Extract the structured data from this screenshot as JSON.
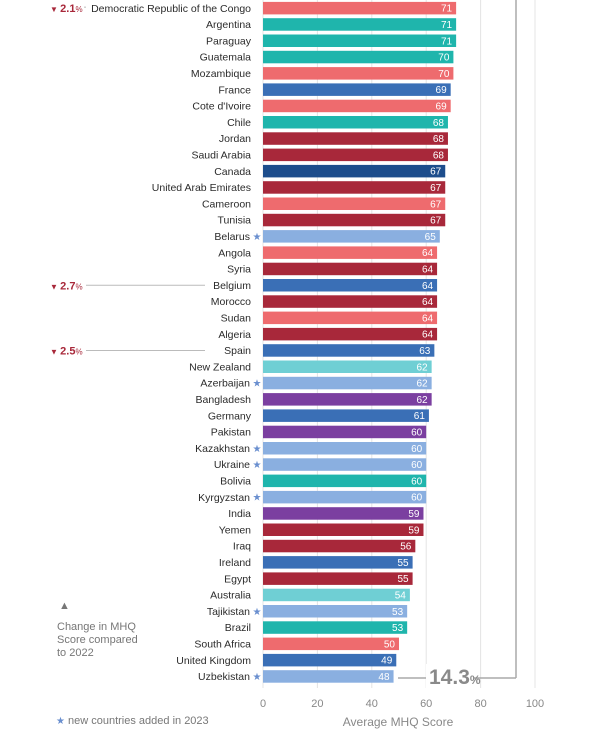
{
  "chart_data": {
    "type": "bar",
    "orientation": "horizontal",
    "xlabel": "Average MHQ Score",
    "xlim": [
      0,
      100
    ],
    "xticks": [
      0,
      20,
      40,
      60,
      80,
      100
    ],
    "categories": [
      "Democratic Republic of the Congo",
      "Argentina",
      "Paraguay",
      "Guatemala",
      "Mozambique",
      "France",
      "Cote d'Ivoire",
      "Chile",
      "Jordan",
      "Saudi Arabia",
      "Canada",
      "United Arab Emirates",
      "Cameroon",
      "Tunisia",
      "Belarus",
      "Angola",
      "Syria",
      "Belgium",
      "Morocco",
      "Sudan",
      "Algeria",
      "Spain",
      "New Zealand",
      "Azerbaijan",
      "Bangladesh",
      "Germany",
      "Pakistan",
      "Kazakhstan",
      "Ukraine",
      "Bolivia",
      "Kyrgyzstan",
      "India",
      "Yemen",
      "Iraq",
      "Ireland",
      "Egypt",
      "Australia",
      "Tajikistan",
      "Brazil",
      "South Africa",
      "United Kingdom",
      "Uzbekistan"
    ],
    "values": [
      71,
      71,
      71,
      70,
      70,
      69,
      69,
      68,
      68,
      68,
      67,
      67,
      67,
      67,
      65,
      64,
      64,
      64,
      64,
      64,
      64,
      63,
      62,
      62,
      62,
      61,
      60,
      60,
      60,
      60,
      60,
      59,
      59,
      56,
      55,
      55,
      54,
      53,
      53,
      50,
      49,
      48
    ],
    "colors": [
      "#ee6b6e",
      "#1fb5ac",
      "#1fb5ac",
      "#1fb5ac",
      "#ee6b6e",
      "#3a6fb6",
      "#ee6b6e",
      "#1fb5ac",
      "#a8283a",
      "#a8283a",
      "#1d4d8c",
      "#a8283a",
      "#ee6b6e",
      "#a8283a",
      "#8aafe0",
      "#ee6b6e",
      "#a8283a",
      "#3a6fb6",
      "#a8283a",
      "#ee6b6e",
      "#a8283a",
      "#3a6fb6",
      "#6fcfd4",
      "#8aafe0",
      "#7b3fa0",
      "#3a6fb6",
      "#7b3fa0",
      "#8aafe0",
      "#8aafe0",
      "#1fb5ac",
      "#8aafe0",
      "#7b3fa0",
      "#a8283a",
      "#a8283a",
      "#3a6fb6",
      "#a8283a",
      "#6fcfd4",
      "#8aafe0",
      "#1fb5ac",
      "#ee6b6e",
      "#3a6fb6",
      "#8aafe0"
    ],
    "new_countries": [
      "Belarus",
      "Azerbaijan",
      "Kazakhstan",
      "Ukraine",
      "Kyrgyzstan",
      "Tajikistan",
      "Uzbekistan"
    ],
    "new_marker": "★",
    "annotations": [
      {
        "country": "Democratic Republic of the Congo",
        "change": "2.1",
        "unit": "%",
        "arrow": "▼"
      },
      {
        "country": "Belgium",
        "change": "2.7",
        "unit": "%",
        "arrow": "▼"
      },
      {
        "country": "Spain",
        "change": "2.5",
        "unit": "%",
        "arrow": "▼"
      }
    ],
    "range_callout": {
      "value": "14.3",
      "unit": "%"
    },
    "legend": {
      "change_icon": "▲",
      "change_lines": [
        "Change in MHQ",
        "Score compared",
        "to 2022"
      ],
      "new_text": "new countries added in 2023"
    }
  }
}
